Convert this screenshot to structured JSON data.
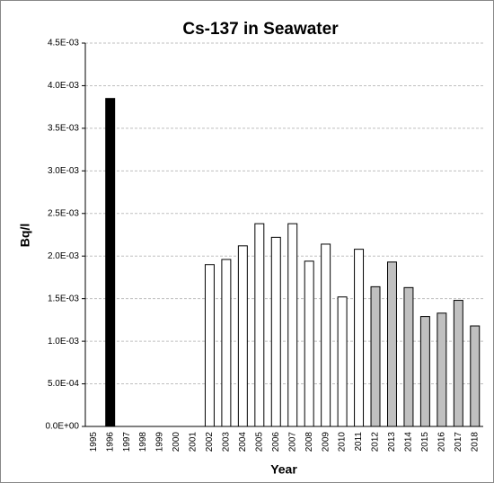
{
  "chart_data": {
    "type": "bar",
    "title": "Cs-137 in Seawater",
    "x_label": "Year",
    "y_label": "Bq/l",
    "categories": [
      "1995",
      "1996",
      "1997",
      "1998",
      "1999",
      "2000",
      "2001",
      "2002",
      "2003",
      "2004",
      "2005",
      "2006",
      "2007",
      "2008",
      "2009",
      "2010",
      "2011",
      "2012",
      "2013",
      "2014",
      "2015",
      "2016",
      "2017",
      "2018"
    ],
    "values": [
      null,
      0.00385,
      null,
      null,
      null,
      null,
      null,
      0.0019,
      0.00196,
      0.00212,
      0.00238,
      0.00222,
      0.00238,
      0.00194,
      0.00214,
      0.00152,
      0.00208,
      0.00164,
      0.00193,
      0.00163,
      0.00129,
      0.00133,
      0.00148,
      0.00118
    ],
    "colors": [
      null,
      "#000000",
      null,
      null,
      null,
      null,
      null,
      "#ffffff",
      "#ffffff",
      "#ffffff",
      "#ffffff",
      "#ffffff",
      "#ffffff",
      "#ffffff",
      "#ffffff",
      "#ffffff",
      "#ffffff",
      "#c0c0c0",
      "#c0c0c0",
      "#c0c0c0",
      "#c0c0c0",
      "#c0c0c0",
      "#c0c0c0",
      "#c0c0c0"
    ],
    "ylim": [
      0,
      0.0045
    ],
    "yticks": [
      {
        "value": 0,
        "label": "0.0E+00"
      },
      {
        "value": 0.0005,
        "label": "5.0E-04"
      },
      {
        "value": 0.001,
        "label": "1.0E-03"
      },
      {
        "value": 0.0015,
        "label": "1.5E-03"
      },
      {
        "value": 0.002,
        "label": "2.0E-03"
      },
      {
        "value": 0.0025,
        "label": "2.5E-03"
      },
      {
        "value": 0.003,
        "label": "3.0E-03"
      },
      {
        "value": 0.0035,
        "label": "3.5E-03"
      },
      {
        "value": 0.004,
        "label": "4.0E-03"
      },
      {
        "value": 0.0045,
        "label": "4.5E-03"
      }
    ],
    "grid": true
  }
}
